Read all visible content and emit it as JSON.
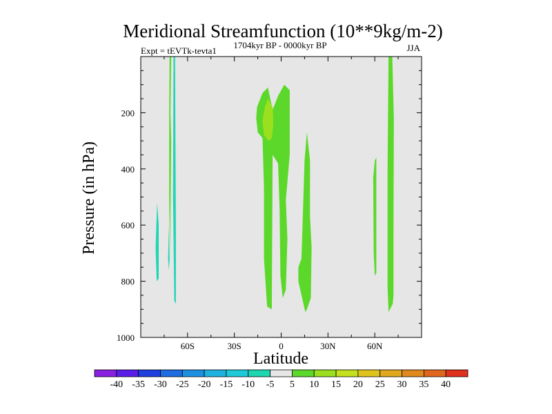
{
  "chart_data": {
    "type": "contour",
    "title": "Meridional Streamfunction (10**9kg/m-2)",
    "left_label": "Expt = tEVTk-tevta1",
    "center_label": "1704kyr BP - 0000kyr BP",
    "right_label": "JJA",
    "xlabel": "Latitude",
    "ylabel": "Pressure (in hPa)",
    "xlim": [
      -90,
      90
    ],
    "ylim": [
      1000,
      0
    ],
    "x_ticks": [
      {
        "value": -60,
        "label": "60S"
      },
      {
        "value": -30,
        "label": "30S"
      },
      {
        "value": 0,
        "label": "0"
      },
      {
        "value": 30,
        "label": "30N"
      },
      {
        "value": 60,
        "label": "60N"
      }
    ],
    "y_ticks": [
      {
        "value": 200,
        "label": "200"
      },
      {
        "value": 400,
        "label": "400"
      },
      {
        "value": 600,
        "label": "600"
      },
      {
        "value": 800,
        "label": "800"
      },
      {
        "value": 1000,
        "label": "1000"
      }
    ],
    "background_color": "#e6e6e6",
    "regions": [
      {
        "name": "region-neg-a",
        "level": -10,
        "color": "#1fd6b6",
        "points": [
          [
            -79.5,
            520
          ],
          [
            -78.5,
            600
          ],
          [
            -78.5,
            790
          ],
          [
            -79.8,
            800
          ],
          [
            -80.5,
            680
          ]
        ]
      },
      {
        "name": "region-pos-a",
        "level": 5,
        "color": "#5cd82a",
        "points": [
          [
            -71.5,
            0
          ],
          [
            -70.5,
            0
          ],
          [
            -71,
            200
          ],
          [
            -70.5,
            300
          ],
          [
            -71.2,
            700
          ],
          [
            -71.8,
            500
          ],
          [
            -71.8,
            200
          ]
        ]
      },
      {
        "name": "region-neg-b",
        "level": -10,
        "color": "#1fd6b6",
        "points": [
          [
            -69,
            0
          ],
          [
            -68,
            0
          ],
          [
            -67.5,
            600
          ],
          [
            -67.5,
            880
          ],
          [
            -68.5,
            870
          ],
          [
            -69.3,
            500
          ]
        ]
      },
      {
        "name": "region-neg-c",
        "level": -10,
        "color": "#1fd6b6",
        "points": [
          [
            -72,
            600
          ],
          [
            -71.5,
            720
          ],
          [
            -72,
            760
          ],
          [
            -72.5,
            720
          ]
        ]
      },
      {
        "name": "region-pos-b",
        "level": 5,
        "color": "#5cd82a",
        "points": [
          [
            -15.5,
            180
          ],
          [
            -12,
            130
          ],
          [
            -8.5,
            110
          ],
          [
            -5.5,
            190
          ],
          [
            -2,
            140
          ],
          [
            2,
            100
          ],
          [
            5.5,
            120
          ],
          [
            5.5,
            350
          ],
          [
            3,
            510
          ],
          [
            4,
            650
          ],
          [
            3,
            830
          ],
          [
            1,
            860
          ],
          [
            -0.5,
            780
          ],
          [
            -1,
            540
          ],
          [
            -2,
            380
          ],
          [
            -5.5,
            350
          ],
          [
            -6,
            900
          ],
          [
            -9,
            890
          ],
          [
            -11,
            720
          ],
          [
            -11,
            470
          ],
          [
            -12,
            290
          ],
          [
            -15,
            270
          ],
          [
            -16,
            220
          ]
        ]
      },
      {
        "name": "region-pos-b-inner",
        "level": 10,
        "color": "#9be01e",
        "points": [
          [
            -10.5,
            180
          ],
          [
            -8.5,
            150
          ],
          [
            -5.5,
            180
          ],
          [
            -5,
            240
          ],
          [
            -6,
            290
          ],
          [
            -8,
            300
          ],
          [
            -11,
            280
          ],
          [
            -12,
            230
          ]
        ]
      },
      {
        "name": "region-pos-c",
        "level": 5,
        "color": "#5cd82a",
        "points": [
          [
            16.5,
            270
          ],
          [
            18.5,
            370
          ],
          [
            18.5,
            570
          ],
          [
            19.5,
            680
          ],
          [
            19,
            860
          ],
          [
            16.5,
            900
          ],
          [
            15.5,
            910
          ],
          [
            11,
            800
          ],
          [
            11,
            750
          ],
          [
            13,
            720
          ],
          [
            15,
            370
          ]
        ]
      },
      {
        "name": "region-pos-d",
        "level": 5,
        "color": "#5cd82a",
        "points": [
          [
            60,
            370
          ],
          [
            61,
            360
          ],
          [
            61,
            770
          ],
          [
            60,
            780
          ],
          [
            59.3,
            700
          ],
          [
            59,
            430
          ]
        ]
      },
      {
        "name": "region-pos-e",
        "level": 5,
        "color": "#5cd82a",
        "points": [
          [
            68.8,
            0
          ],
          [
            71.2,
            0
          ],
          [
            72.2,
            220
          ],
          [
            72,
            600
          ],
          [
            72,
            850
          ],
          [
            71.5,
            880
          ],
          [
            68.8,
            910
          ],
          [
            68.2,
            820
          ],
          [
            68.2,
            400
          ]
        ]
      }
    ],
    "colorbar": {
      "colors": [
        "#8a1fe0",
        "#5a1ee8",
        "#2040e0",
        "#1e6ce0",
        "#1e90e0",
        "#1eb2e0",
        "#1ecad8",
        "#1ed6b0",
        "#e6e6e6",
        "#5cd82a",
        "#9be01e",
        "#c4e01e",
        "#e0c41e",
        "#e0a81e",
        "#e08a1e",
        "#e0661e",
        "#e0301e"
      ],
      "labels": [
        "-40",
        "-35",
        "-30",
        "-25",
        "-20",
        "-15",
        "-10",
        "-5",
        "5",
        "10",
        "15",
        "20",
        "25",
        "30",
        "35",
        "40"
      ]
    }
  }
}
